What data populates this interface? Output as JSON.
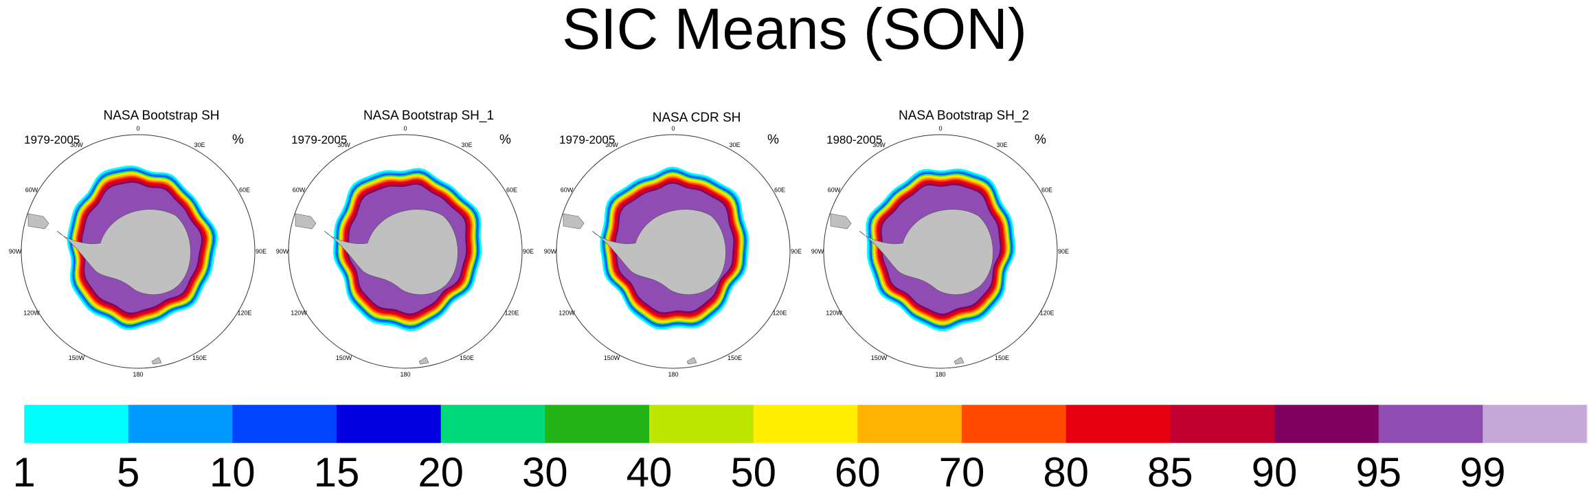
{
  "title": "SIC Means (SON)",
  "chart_data": {
    "type": "polar-map-panels",
    "panels": [
      {
        "title": "NASA Bootstrap SH",
        "period": "1979-2005",
        "unit": "%"
      },
      {
        "title": "NASA Bootstrap SH_1",
        "period": "1979-2005",
        "unit": "%"
      },
      {
        "title": "NASA CDR SH",
        "period": "1979-2005",
        "unit": "%"
      },
      {
        "title": "NASA Bootstrap SH_2",
        "period": "1980-2005",
        "unit": "%"
      }
    ],
    "longitude_labels": [
      "0",
      "30E",
      "60E",
      "90E",
      "120E",
      "150E",
      "180",
      "150W",
      "120W",
      "90W",
      "60W",
      "30W"
    ],
    "land_color": "#c0c0c0",
    "colorbar": {
      "levels": [
        "1",
        "5",
        "10",
        "15",
        "20",
        "30",
        "40",
        "50",
        "60",
        "70",
        "80",
        "85",
        "90",
        "95",
        "99"
      ],
      "colors": [
        "#00ffff",
        "#0099ff",
        "#0044ff",
        "#0000e0",
        "#00d97a",
        "#22b515",
        "#bde600",
        "#ffee00",
        "#ffb300",
        "#ff4a00",
        "#e60010",
        "#c00030",
        "#800060",
        "#8f4db3",
        "#c6a8d8"
      ]
    }
  }
}
